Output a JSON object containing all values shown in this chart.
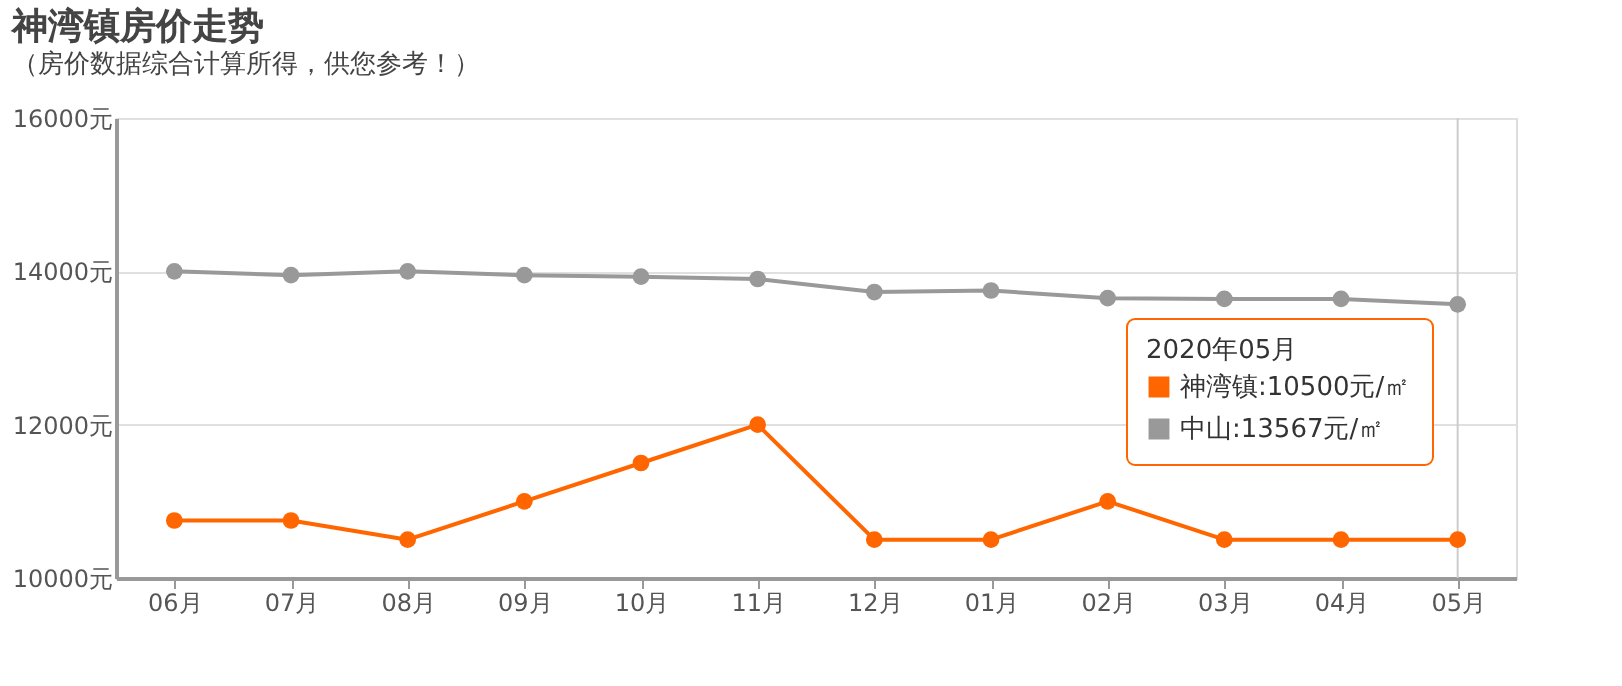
{
  "chart_data": {
    "type": "line",
    "title": "神湾镇房价走势",
    "subtitle": "（房价数据综合计算所得，供您参考！）",
    "categories": [
      "06月",
      "07月",
      "08月",
      "09月",
      "10月",
      "11月",
      "12月",
      "01月",
      "02月",
      "03月",
      "04月",
      "05月"
    ],
    "legend_title": "2020年05月",
    "series": [
      {
        "name": "神湾镇:10500元/㎡",
        "color": "#ff6600",
        "values": [
          10750,
          10750,
          10500,
          11000,
          11500,
          12000,
          10500,
          10500,
          11000,
          10500,
          10500,
          10500
        ]
      },
      {
        "name": "中山:13567元/㎡",
        "color": "#999999",
        "values": [
          14000,
          13950,
          14000,
          13950,
          13930,
          13900,
          13730,
          13750,
          13650,
          13640,
          13640,
          13570
        ]
      }
    ],
    "ylim": [
      10000,
      16000
    ],
    "yticks": [
      {
        "value": 10000,
        "label": "10000元"
      },
      {
        "value": 12000,
        "label": "12000元"
      },
      {
        "value": 14000,
        "label": "14000元"
      },
      {
        "value": 16000,
        "label": "16000元"
      }
    ],
    "grid": "y",
    "marker": "circle",
    "legend": "right",
    "ref_lines": [
      {
        "axis": "x",
        "value": "05月",
        "color": "#cccccc"
      }
    ]
  }
}
